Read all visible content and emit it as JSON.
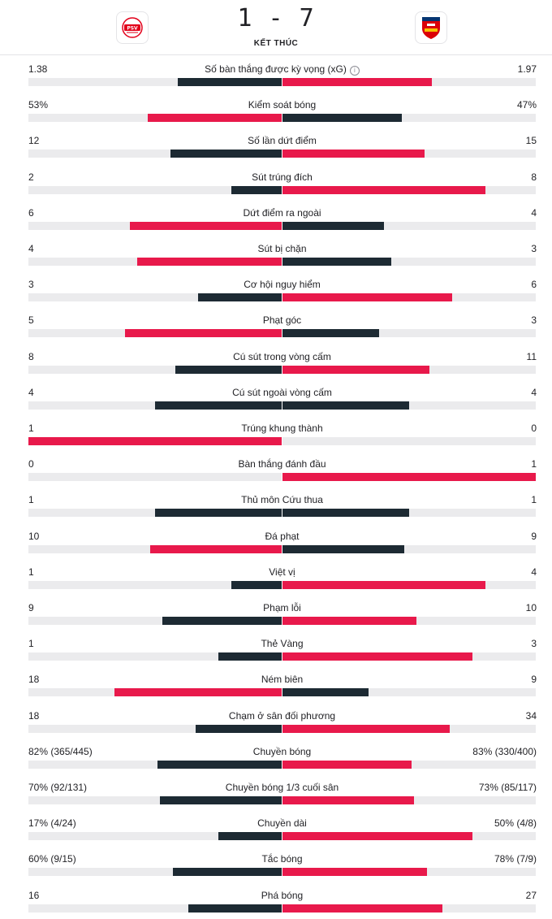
{
  "match": {
    "score": "1 - 7",
    "status": "KẾT THÚC",
    "home_logo_icon": "psv-crest-icon",
    "away_logo_icon": "arsenal-crest-icon"
  },
  "colors": {
    "better": "#e8194b",
    "worse": "#1d2a33",
    "track": "#ebebed"
  },
  "stats": [
    {
      "label": "Số bàn thắng được kỳ vọng (xG)",
      "home": "1.38",
      "away": "1.97",
      "home_n": 1.38,
      "away_n": 1.97,
      "info": true
    },
    {
      "label": "Kiểm soát bóng",
      "home": "53%",
      "away": "47%",
      "home_n": 53,
      "away_n": 47
    },
    {
      "label": "Số lần dứt điểm",
      "home": "12",
      "away": "15",
      "home_n": 12,
      "away_n": 15
    },
    {
      "label": "Sút trúng đích",
      "home": "2",
      "away": "8",
      "home_n": 2,
      "away_n": 8
    },
    {
      "label": "Dứt điểm ra ngoài",
      "home": "6",
      "away": "4",
      "home_n": 6,
      "away_n": 4
    },
    {
      "label": "Sút bị chặn",
      "home": "4",
      "away": "3",
      "home_n": 4,
      "away_n": 3
    },
    {
      "label": "Cơ hội nguy hiểm",
      "home": "3",
      "away": "6",
      "home_n": 3,
      "away_n": 6
    },
    {
      "label": "Phạt góc",
      "home": "5",
      "away": "3",
      "home_n": 5,
      "away_n": 3
    },
    {
      "label": "Cú sút trong vòng cấm",
      "home": "8",
      "away": "11",
      "home_n": 8,
      "away_n": 11
    },
    {
      "label": "Cú sút ngoài vòng cấm",
      "home": "4",
      "away": "4",
      "home_n": 4,
      "away_n": 4
    },
    {
      "label": "Trúng khung thành",
      "home": "1",
      "away": "0",
      "home_n": 1,
      "away_n": 0
    },
    {
      "label": "Bàn thắng đánh đầu",
      "home": "0",
      "away": "1",
      "home_n": 0,
      "away_n": 1
    },
    {
      "label": "Thủ môn Cứu thua",
      "home": "1",
      "away": "1",
      "home_n": 1,
      "away_n": 1
    },
    {
      "label": "Đá phạt",
      "home": "10",
      "away": "9",
      "home_n": 10,
      "away_n": 9
    },
    {
      "label": "Việt vị",
      "home": "1",
      "away": "4",
      "home_n": 1,
      "away_n": 4
    },
    {
      "label": "Phạm lỗi",
      "home": "9",
      "away": "10",
      "home_n": 9,
      "away_n": 10
    },
    {
      "label": "Thẻ Vàng",
      "home": "1",
      "away": "3",
      "home_n": 1,
      "away_n": 3
    },
    {
      "label": "Ném biên",
      "home": "18",
      "away": "9",
      "home_n": 18,
      "away_n": 9
    },
    {
      "label": "Chạm ở sân đối phương",
      "home": "18",
      "away": "34",
      "home_n": 18,
      "away_n": 34
    },
    {
      "label": "Chuyền bóng",
      "home": "82% (365/445)",
      "away": "83% (330/400)",
      "home_n": 365,
      "away_n": 330
    },
    {
      "label": "Chuyền bóng 1/3 cuối sân",
      "home": "70% (92/131)",
      "away": "73% (85/117)",
      "home_n": 92,
      "away_n": 85
    },
    {
      "label": "Chuyền dài",
      "home": "17% (4/24)",
      "away": "50% (4/8)",
      "home_n": 4,
      "away_n": 4
    },
    {
      "label": "Tắc bóng",
      "home": "60% (9/15)",
      "away": "78% (7/9)",
      "home_n": 9,
      "away_n": 7
    },
    {
      "label": "Phá bóng",
      "home": "16",
      "away": "27",
      "home_n": 16,
      "away_n": 27
    }
  ],
  "bars": [
    {
      "home": 0.41,
      "away": 0.59,
      "home_better": false
    },
    {
      "home": 0.53,
      "away": 0.47,
      "home_better": true
    },
    {
      "home": 0.44,
      "away": 0.56,
      "home_better": false
    },
    {
      "home": 0.2,
      "away": 0.8,
      "home_better": false
    },
    {
      "home": 0.6,
      "away": 0.4,
      "home_better": true
    },
    {
      "home": 0.57,
      "away": 0.43,
      "home_better": true
    },
    {
      "home": 0.33,
      "away": 0.67,
      "home_better": false
    },
    {
      "home": 0.62,
      "away": 0.38,
      "home_better": true
    },
    {
      "home": 0.42,
      "away": 0.58,
      "home_better": false
    },
    {
      "home": 0.5,
      "away": 0.5,
      "home_better": null
    },
    {
      "home": 1.0,
      "away": 0.0,
      "home_better": true
    },
    {
      "home": 0.0,
      "away": 1.0,
      "home_better": false
    },
    {
      "home": 0.5,
      "away": 0.5,
      "home_better": null
    },
    {
      "home": 0.52,
      "away": 0.48,
      "home_better": true
    },
    {
      "home": 0.2,
      "away": 0.8,
      "home_better": false
    },
    {
      "home": 0.47,
      "away": 0.53,
      "home_better": false
    },
    {
      "home": 0.25,
      "away": 0.75,
      "home_better": false
    },
    {
      "home": 0.66,
      "away": 0.34,
      "home_better": true
    },
    {
      "home": 0.34,
      "away": 0.66,
      "home_better": false
    },
    {
      "home": 0.49,
      "away": 0.51,
      "home_better": false
    },
    {
      "home": 0.48,
      "away": 0.52,
      "home_better": false
    },
    {
      "home": 0.25,
      "away": 0.75,
      "home_better": false
    },
    {
      "home": 0.43,
      "away": 0.57,
      "home_better": false
    },
    {
      "home": 0.37,
      "away": 0.63,
      "home_better": false
    }
  ]
}
